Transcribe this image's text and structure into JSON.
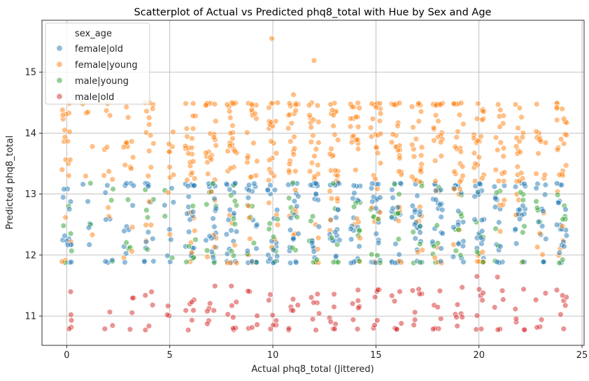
{
  "chart_data": {
    "type": "scatter",
    "title": "Scatterplot of Actual vs Predicted phq8_total with Hue by Sex and Age",
    "xlabel": "Actual phq8_total (Jittered)",
    "ylabel": "Predicted phq8_total",
    "xlim": [
      -1.2,
      25.1
    ],
    "ylim": [
      10.52,
      15.85
    ],
    "xticks": [
      0,
      5,
      10,
      15,
      20,
      25
    ],
    "yticks": [
      11,
      12,
      13,
      14,
      15
    ],
    "grid": true,
    "legend": {
      "title": "sex_age",
      "position": "top-left"
    },
    "series": [
      {
        "name": "female|old",
        "color": "#1f77b4",
        "y_band": [
          11.87,
          13.18
        ]
      },
      {
        "name": "female|young",
        "color": "#ff7f0e",
        "y_band": [
          11.87,
          14.5
        ]
      },
      {
        "name": "male|young",
        "color": "#2ca02c",
        "y_band": [
          11.87,
          13.2
        ]
      },
      {
        "name": "male|old",
        "color": "#d62728",
        "y_band": [
          10.77,
          11.6
        ]
      }
    ],
    "outliers": [
      {
        "series": "female|young",
        "x": 9.95,
        "y": 15.55
      },
      {
        "series": "female|young",
        "x": 12.0,
        "y": 15.19
      },
      {
        "series": "female|young",
        "x": 11.0,
        "y": 14.63
      },
      {
        "series": "male|old",
        "x": 19.9,
        "y": 11.65
      },
      {
        "series": "male|old",
        "x": 20.9,
        "y": 11.64
      }
    ]
  }
}
